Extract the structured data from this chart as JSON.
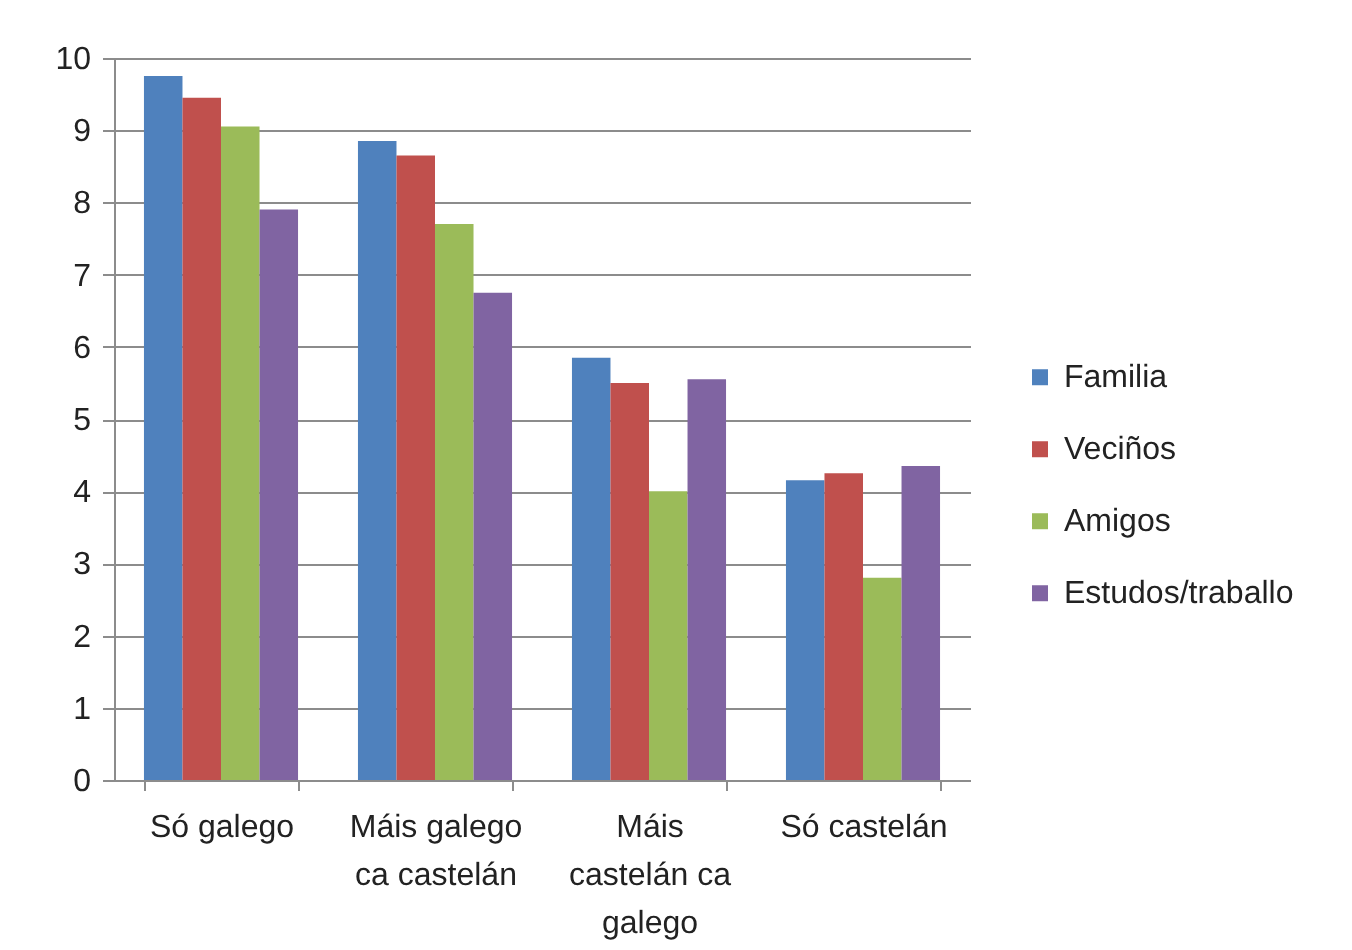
{
  "chart_data": {
    "type": "bar",
    "categories": [
      "Só galego",
      "Máis galego ca castelán",
      "Máis castelán ca galego",
      "Só castelán"
    ],
    "series": [
      {
        "name": "Familia",
        "color": "#4f81bd",
        "values": [
          9.75,
          8.85,
          5.85,
          4.15
        ]
      },
      {
        "name": "Veciños",
        "color": "#c0504d",
        "values": [
          9.45,
          8.65,
          5.5,
          4.25
        ]
      },
      {
        "name": "Amigos",
        "color": "#9bbb59",
        "values": [
          9.05,
          7.7,
          4.0,
          2.8
        ]
      },
      {
        "name": "Estudos/traballo",
        "color": "#8064a2",
        "values": [
          7.9,
          6.75,
          5.55,
          4.35
        ]
      }
    ],
    "ylim": [
      0,
      10
    ],
    "yticks": [
      0,
      1,
      2,
      3,
      4,
      5,
      6,
      7,
      8,
      9,
      10
    ],
    "grid": "y",
    "legend": "right"
  }
}
